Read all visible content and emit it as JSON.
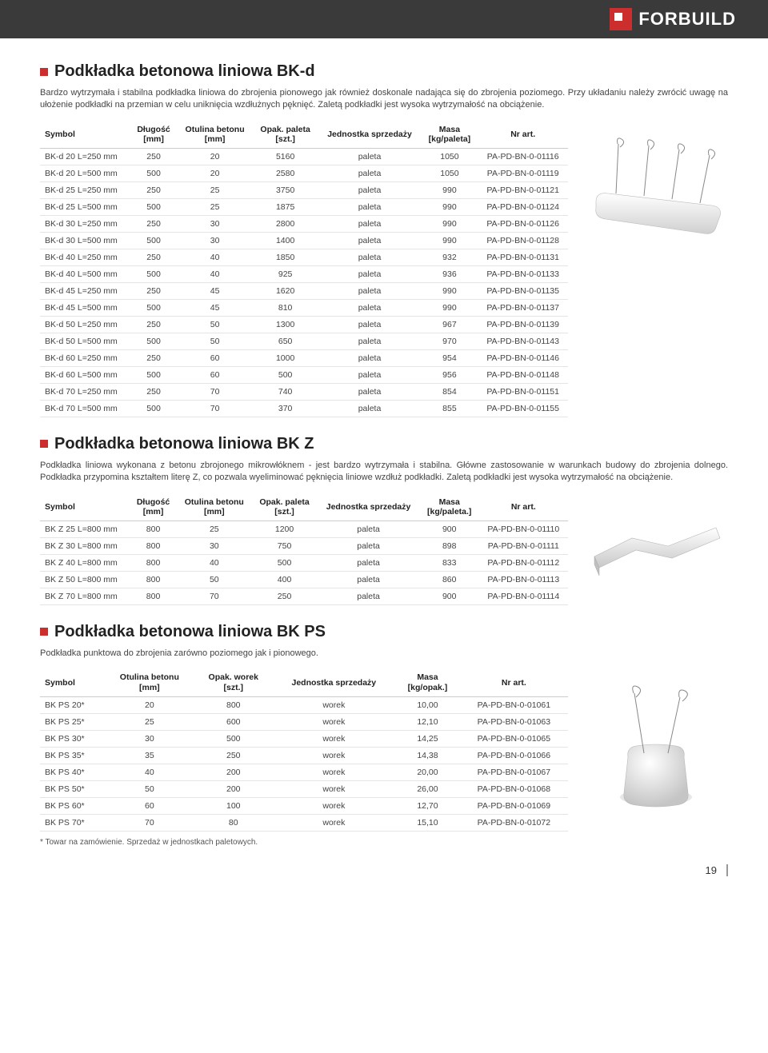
{
  "brand": {
    "name": "FORBUILD"
  },
  "page_number": "19",
  "sections": {
    "bkd": {
      "title": "Podkładka betonowa liniowa BK-d",
      "desc": "Bardzo wytrzymała i stabilna podkładka liniowa do zbrojenia pionowego jak również doskonale nadająca się do zbrojenia poziomego. Przy układaniu należy zwrócić uwagę na ułożenie podkładki na przemian w celu uniknięcia wzdłużnych pęknięć. Zaletą podkładki jest wysoka wytrzymałość na obciążenie.",
      "columns": [
        "Symbol",
        "Długość [mm]",
        "Otulina betonu [mm]",
        "Opak. paleta [szt.]",
        "Jednostka sprzedaży",
        "Masa [kg/paleta]",
        "Nr art."
      ],
      "rows": [
        [
          "BK-d 20 L=250 mm",
          "250",
          "20",
          "5160",
          "paleta",
          "1050",
          "PA-PD-BN-0-01116"
        ],
        [
          "BK-d 20 L=500 mm",
          "500",
          "20",
          "2580",
          "paleta",
          "1050",
          "PA-PD-BN-0-01119"
        ],
        [
          "BK-d 25 L=250 mm",
          "250",
          "25",
          "3750",
          "paleta",
          "990",
          "PA-PD-BN-0-01121"
        ],
        [
          "BK-d 25 L=500 mm",
          "500",
          "25",
          "1875",
          "paleta",
          "990",
          "PA-PD-BN-0-01124"
        ],
        [
          "BK-d 30 L=250 mm",
          "250",
          "30",
          "2800",
          "paleta",
          "990",
          "PA-PD-BN-0-01126"
        ],
        [
          "BK-d 30 L=500 mm",
          "500",
          "30",
          "1400",
          "paleta",
          "990",
          "PA-PD-BN-0-01128"
        ],
        [
          "BK-d 40 L=250 mm",
          "250",
          "40",
          "1850",
          "paleta",
          "932",
          "PA-PD-BN-0-01131"
        ],
        [
          "BK-d 40 L=500 mm",
          "500",
          "40",
          "925",
          "paleta",
          "936",
          "PA-PD-BN-0-01133"
        ],
        [
          "BK-d 45 L=250 mm",
          "250",
          "45",
          "1620",
          "paleta",
          "990",
          "PA-PD-BN-0-01135"
        ],
        [
          "BK-d 45 L=500 mm",
          "500",
          "45",
          "810",
          "paleta",
          "990",
          "PA-PD-BN-0-01137"
        ],
        [
          "BK-d 50 L=250 mm",
          "250",
          "50",
          "1300",
          "paleta",
          "967",
          "PA-PD-BN-0-01139"
        ],
        [
          "BK-d 50 L=500 mm",
          "500",
          "50",
          "650",
          "paleta",
          "970",
          "PA-PD-BN-0-01143"
        ],
        [
          "BK-d 60 L=250 mm",
          "250",
          "60",
          "1000",
          "paleta",
          "954",
          "PA-PD-BN-0-01146"
        ],
        [
          "BK-d 60 L=500 mm",
          "500",
          "60",
          "500",
          "paleta",
          "956",
          "PA-PD-BN-0-01148"
        ],
        [
          "BK-d 70 L=250 mm",
          "250",
          "70",
          "740",
          "paleta",
          "854",
          "PA-PD-BN-0-01151"
        ],
        [
          "BK-d 70 L=500 mm",
          "500",
          "70",
          "370",
          "paleta",
          "855",
          "PA-PD-BN-0-01155"
        ]
      ]
    },
    "bkz": {
      "title": "Podkładka betonowa liniowa BK Z",
      "desc": "Podkładka liniowa wykonana z betonu zbrojonego mikrowłóknem - jest bardzo wytrzymała i stabilna. Główne zastosowanie w warunkach budowy do zbrojenia dolnego. Podkładka przypomina kształtem literę Z, co pozwala wyeliminować pęknięcia liniowe wzdłuż podkładki. Zaletą podkładki jest wysoka wytrzymałość na obciążenie.",
      "columns": [
        "Symbol",
        "Długość [mm]",
        "Otulina betonu [mm]",
        "Opak. paleta [szt.]",
        "Jednostka sprzedaży",
        "Masa [kg/paleta.]",
        "Nr art."
      ],
      "rows": [
        [
          "BK Z 25 L=800 mm",
          "800",
          "25",
          "1200",
          "paleta",
          "900",
          "PA-PD-BN-0-01110"
        ],
        [
          "BK Z 30 L=800 mm",
          "800",
          "30",
          "750",
          "paleta",
          "898",
          "PA-PD-BN-0-01111"
        ],
        [
          "BK Z 40 L=800 mm",
          "800",
          "40",
          "500",
          "paleta",
          "833",
          "PA-PD-BN-0-01112"
        ],
        [
          "BK Z 50 L=800 mm",
          "800",
          "50",
          "400",
          "paleta",
          "860",
          "PA-PD-BN-0-01113"
        ],
        [
          "BK Z 70 L=800 mm",
          "800",
          "70",
          "250",
          "paleta",
          "900",
          "PA-PD-BN-0-01114"
        ]
      ]
    },
    "bkps": {
      "title": "Podkładka betonowa liniowa BK PS",
      "desc": "Podkładka punktowa do zbrojenia zarówno poziomego jak i pionowego.",
      "columns": [
        "Symbol",
        "Otulina betonu [mm]",
        "Opak. worek [szt.]",
        "Jednostka sprzedaży",
        "Masa [kg/opak.]",
        "Nr art."
      ],
      "rows": [
        [
          "BK PS 20*",
          "20",
          "800",
          "worek",
          "10,00",
          "PA-PD-BN-0-01061"
        ],
        [
          "BK PS 25*",
          "25",
          "600",
          "worek",
          "12,10",
          "PA-PD-BN-0-01063"
        ],
        [
          "BK PS 30*",
          "30",
          "500",
          "worek",
          "14,25",
          "PA-PD-BN-0-01065"
        ],
        [
          "BK PS 35*",
          "35",
          "250",
          "worek",
          "14,38",
          "PA-PD-BN-0-01066"
        ],
        [
          "BK PS 40*",
          "40",
          "200",
          "worek",
          "20,00",
          "PA-PD-BN-0-01067"
        ],
        [
          "BK PS 50*",
          "50",
          "200",
          "worek",
          "26,00",
          "PA-PD-BN-0-01068"
        ],
        [
          "BK PS 60*",
          "60",
          "100",
          "worek",
          "12,70",
          "PA-PD-BN-0-01069"
        ],
        [
          "BK PS 70*",
          "70",
          "80",
          "worek",
          "15,10",
          "PA-PD-BN-0-01072"
        ]
      ],
      "footnote": "* Towar na zamówienie. Sprzedaż w jednostkach paletowych."
    }
  }
}
